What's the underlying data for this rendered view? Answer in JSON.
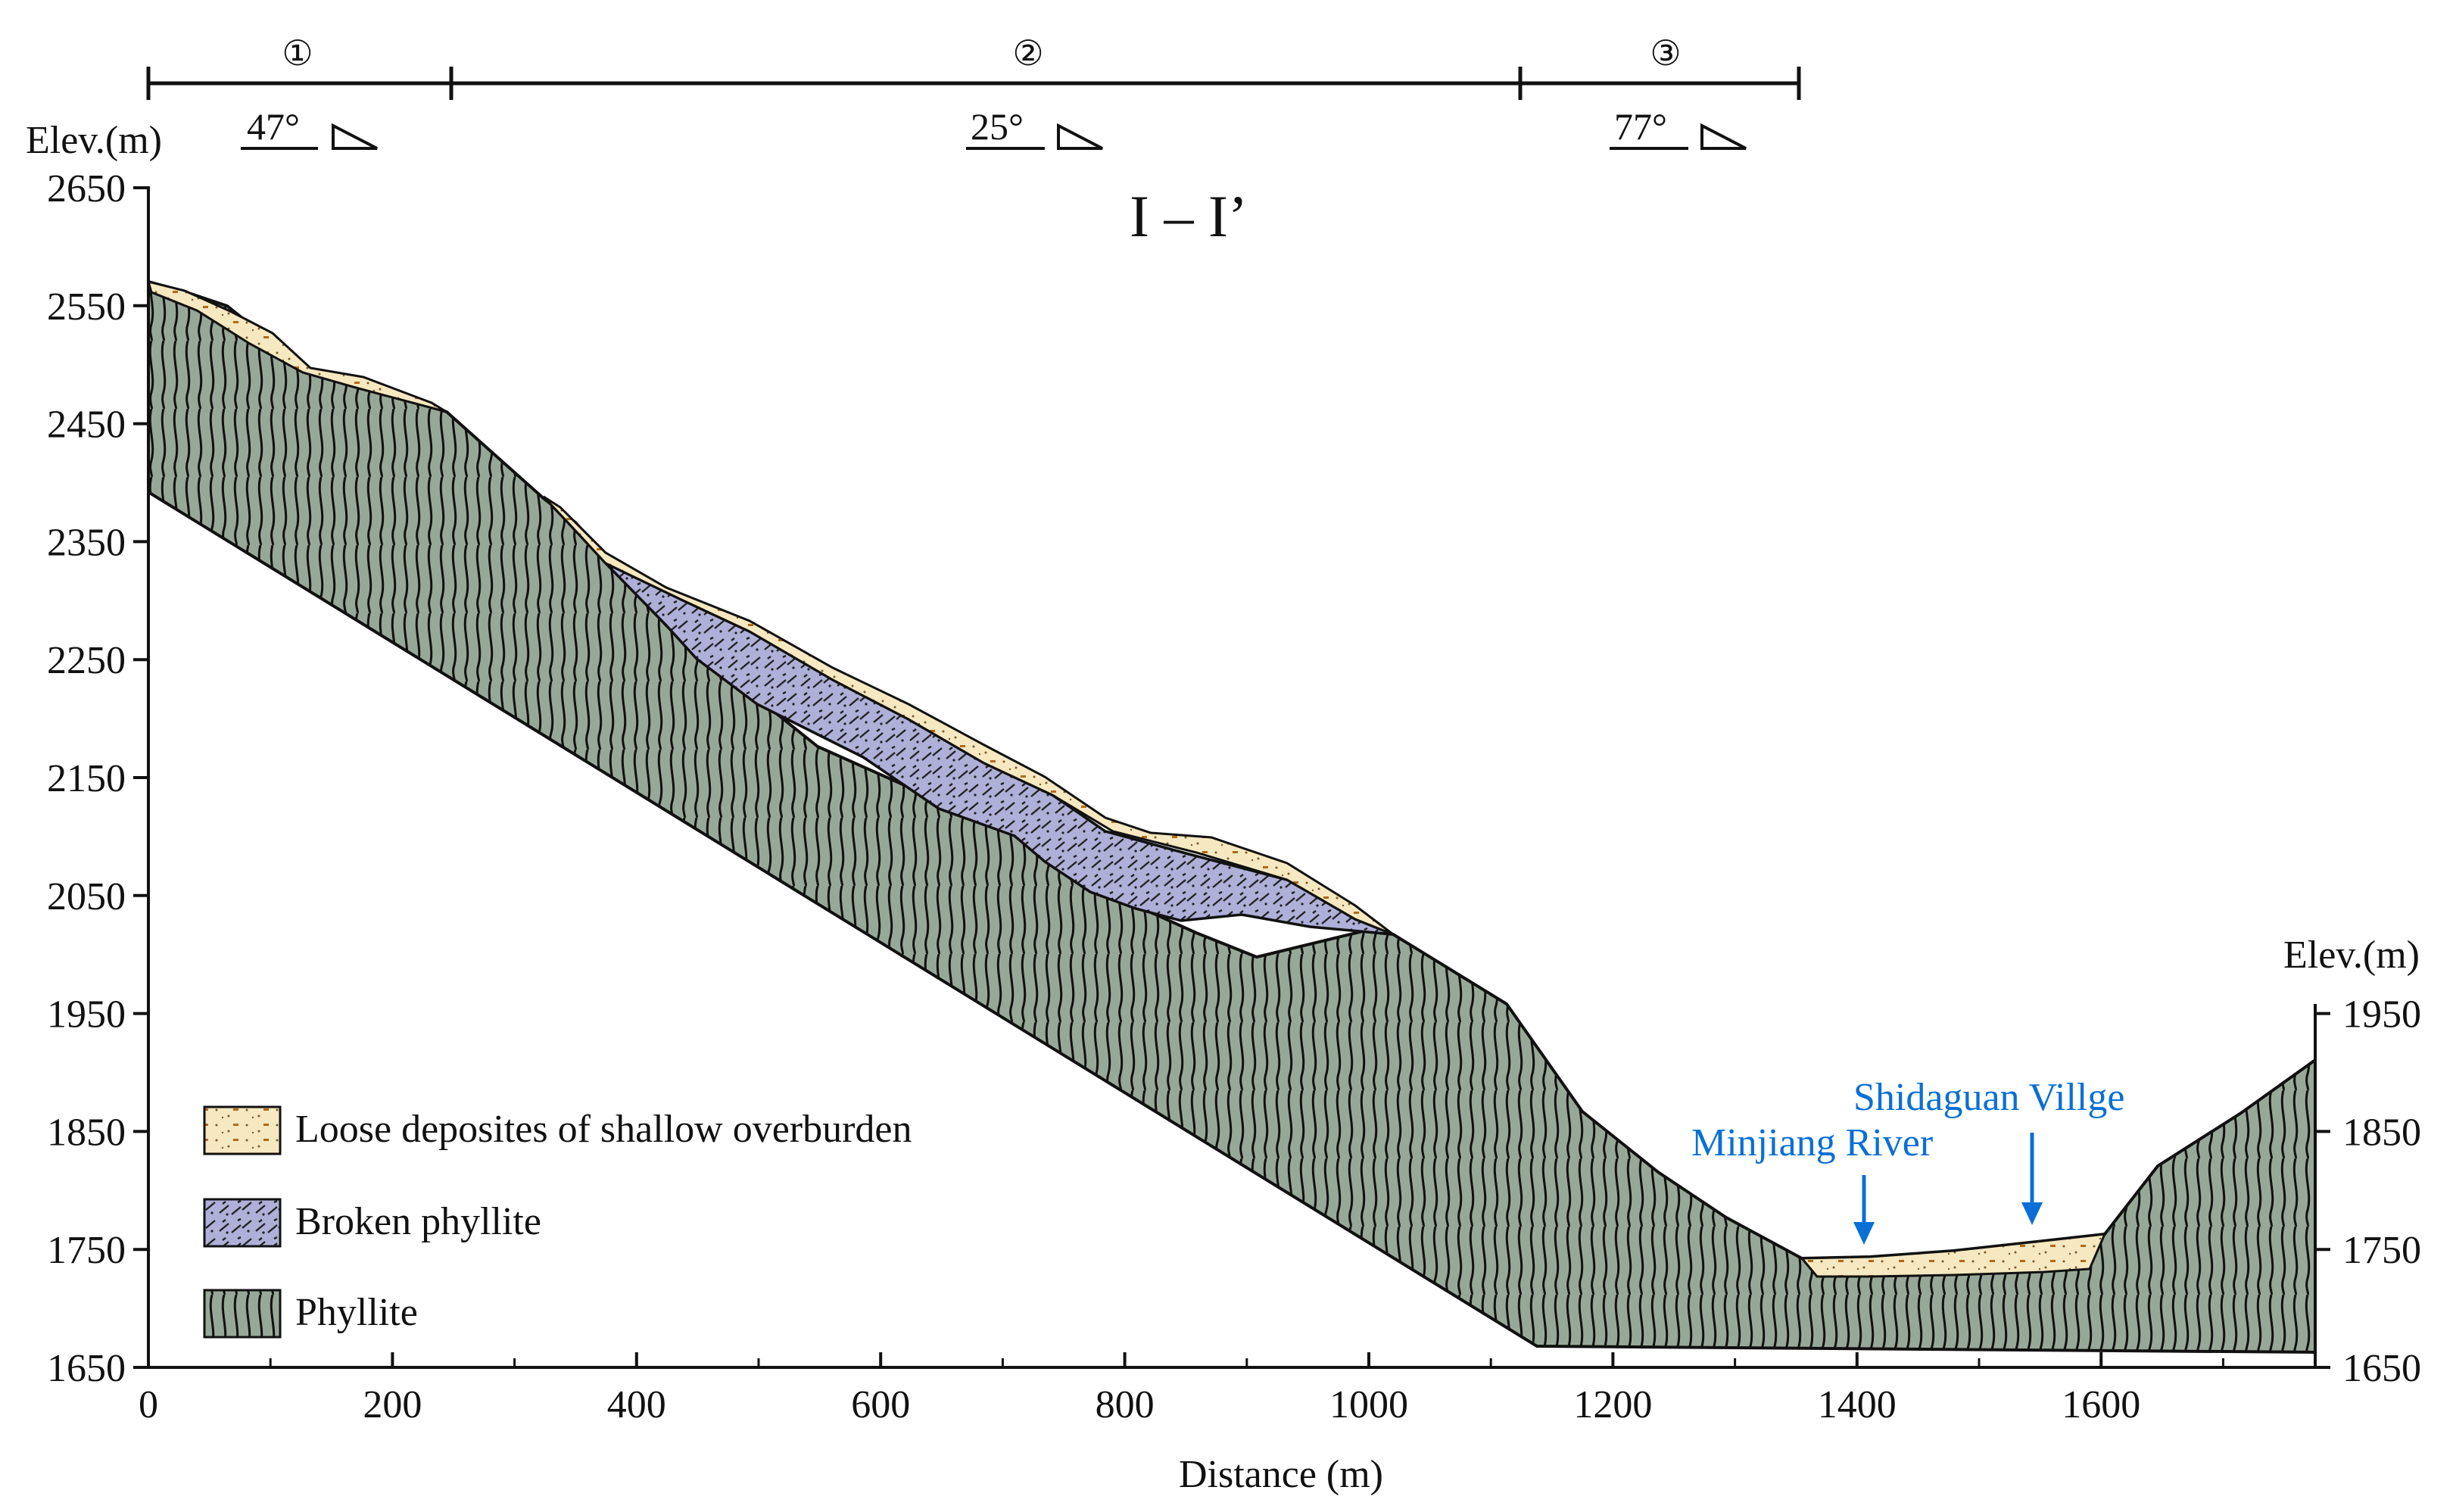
{
  "title": "I – I’",
  "axis": {
    "x_label": "Distance (m)",
    "left_y_label": "Elev.(m)",
    "right_y_label": "Elev.(m)",
    "x_ticks": [
      "0",
      "200",
      "400",
      "600",
      "800",
      "1000",
      "1200",
      "1400",
      "1600"
    ],
    "left_y_ticks": [
      "2650",
      "2550",
      "2450",
      "2350",
      "2250",
      "2150",
      "2050",
      "1950",
      "1850",
      "1750",
      "1650"
    ],
    "right_y_ticks": [
      "1950",
      "1850",
      "1750",
      "1650"
    ]
  },
  "segments": [
    {
      "marker": "①",
      "angle": "47°"
    },
    {
      "marker": "②",
      "angle": "25°"
    },
    {
      "marker": "③",
      "angle": "77°"
    }
  ],
  "annotations": {
    "river": "Minjiang River",
    "village": "Shidaguan Villge"
  },
  "legend": [
    {
      "label": "Loose deposites of shallow overburden"
    },
    {
      "label": "Broken phyllite"
    },
    {
      "label": "Phyllite"
    }
  ],
  "colors": {
    "phyllite": "#98a898",
    "broken_phyllite": "#aeb0d8",
    "deposits": "#f6e8c0",
    "annotation_blue": "#0a6fd6",
    "ink": "#111111"
  }
}
